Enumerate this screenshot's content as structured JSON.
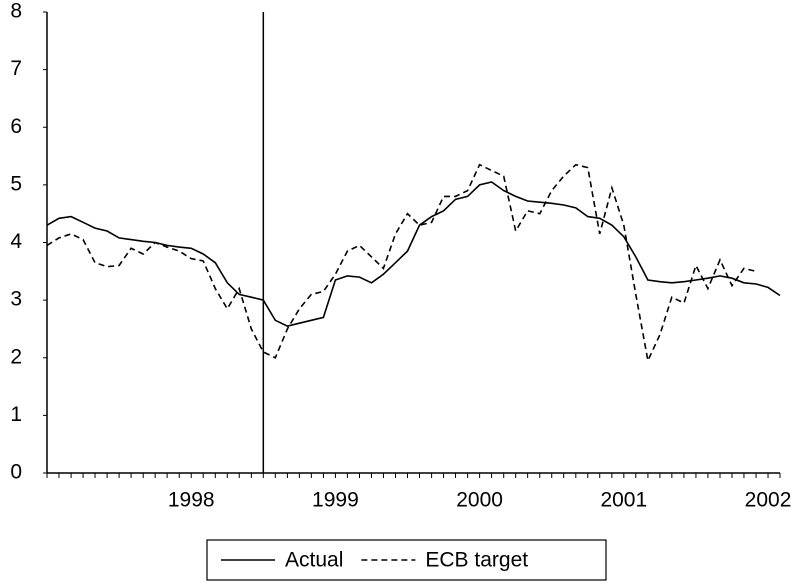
{
  "chart_data": {
    "type": "line",
    "x": [
      1997.5,
      1997.583,
      1997.667,
      1997.75,
      1997.833,
      1997.917,
      1998,
      1998.083,
      1998.167,
      1998.25,
      1998.333,
      1998.417,
      1998.5,
      1998.583,
      1998.667,
      1998.75,
      1998.833,
      1998.917,
      1999,
      1999.083,
      1999.167,
      1999.25,
      1999.333,
      1999.417,
      1999.5,
      1999.583,
      1999.667,
      1999.75,
      1999.833,
      1999.917,
      2000,
      2000.083,
      2000.167,
      2000.25,
      2000.333,
      2000.417,
      2000.5,
      2000.583,
      2000.667,
      2000.75,
      2000.833,
      2000.917,
      2001,
      2001.083,
      2001.167,
      2001.25,
      2001.333,
      2001.417,
      2001.5,
      2001.583,
      2001.667,
      2001.75,
      2001.833,
      2001.917,
      2002,
      2002.083,
      2002.167,
      2002.25,
      2002.333,
      2002.417,
      2002.5,
      2002.583
    ],
    "series": [
      {
        "name": "Actual",
        "color": "#000000",
        "dashed": false,
        "values": [
          4.3,
          4.42,
          4.45,
          4.35,
          4.25,
          4.2,
          4.08,
          4.05,
          4.02,
          4.0,
          3.95,
          3.92,
          3.9,
          3.8,
          3.65,
          3.3,
          3.1,
          3.05,
          3.0,
          2.65,
          2.55,
          2.6,
          2.65,
          2.7,
          3.35,
          3.42,
          3.4,
          3.3,
          3.45,
          3.65,
          3.85,
          4.3,
          4.45,
          4.55,
          4.75,
          4.8,
          5.0,
          5.05,
          4.9,
          4.8,
          4.72,
          4.7,
          4.68,
          4.65,
          4.6,
          4.45,
          4.42,
          4.3,
          4.1,
          3.75,
          3.35,
          3.32,
          3.3,
          3.32,
          3.35,
          3.38,
          3.42,
          3.38,
          3.3,
          3.28,
          3.22,
          3.08
        ]
      },
      {
        "name": "ECB target",
        "color": "#000000",
        "dashed": true,
        "values": [
          3.95,
          4.08,
          4.15,
          4.05,
          3.65,
          3.58,
          3.6,
          3.9,
          3.8,
          4.0,
          3.92,
          3.85,
          3.72,
          3.68,
          3.2,
          2.85,
          3.2,
          2.5,
          2.1,
          2.0,
          2.5,
          2.85,
          3.1,
          3.15,
          3.45,
          3.85,
          3.95,
          3.75,
          3.55,
          4.15,
          4.5,
          4.3,
          4.35,
          4.8,
          4.8,
          4.9,
          5.35,
          5.25,
          5.15,
          4.2,
          4.55,
          4.5,
          4.9,
          5.15,
          5.35,
          5.3,
          4.15,
          4.95,
          4.3,
          3.1,
          1.95,
          2.4,
          3.05,
          2.95,
          3.6,
          3.2,
          3.7,
          3.25,
          3.55,
          3.5,
          null,
          null
        ]
      }
    ],
    "vertical_line": 1999,
    "xlim": [
      1997.5,
      2002.583
    ],
    "xticks": [
      {
        "value": 1998.5,
        "label": "1998"
      },
      {
        "value": 1999.5,
        "label": "1999"
      },
      {
        "value": 2000.5,
        "label": "2000"
      },
      {
        "value": 2001.5,
        "label": "2001"
      },
      {
        "value": 2002.5,
        "label": "2002"
      }
    ],
    "ylim": [
      0,
      8
    ],
    "yticks": [
      0,
      1,
      2,
      3,
      4,
      5,
      6,
      7,
      8
    ],
    "legend": "bottom"
  }
}
